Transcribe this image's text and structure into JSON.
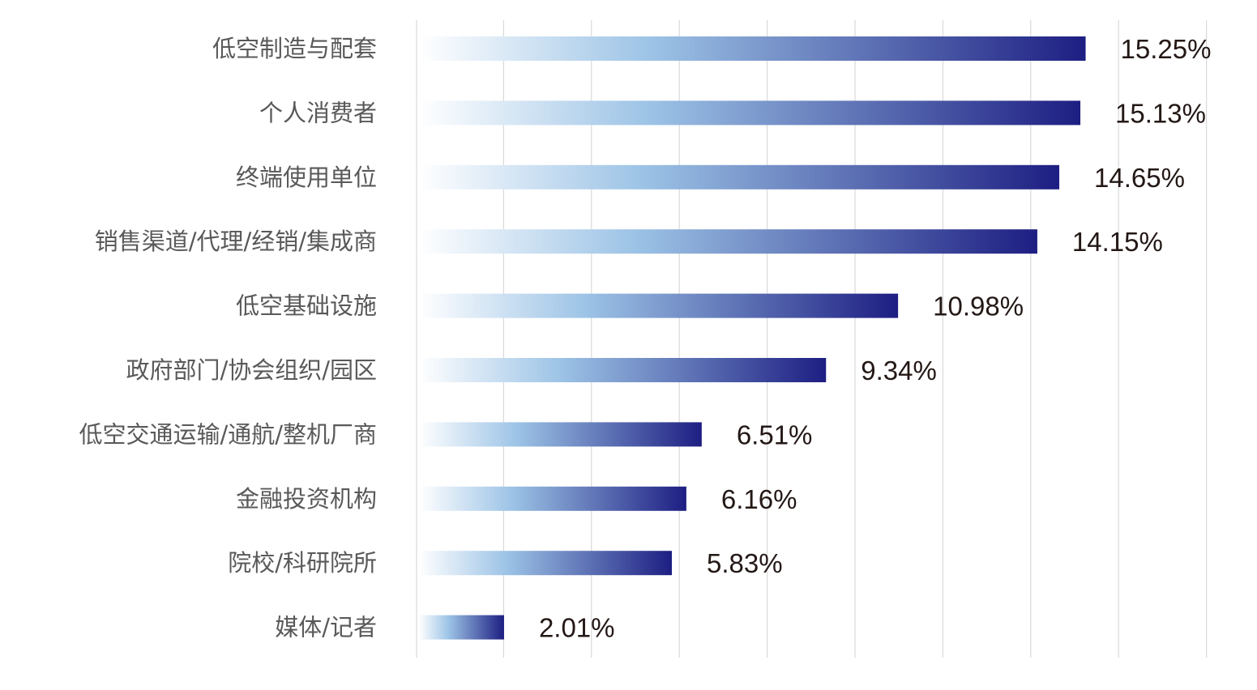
{
  "chart_data": {
    "type": "bar",
    "orientation": "horizontal",
    "categories": [
      "低空制造与配套",
      "个人消费者",
      "终端使用单位",
      "销售渠道/代理/经销/集成商",
      "低空基础设施",
      "政府部门/协会组织/园区",
      "低空交通运输/通航/整机厂商",
      "金融投资机构",
      "院校/科研院所",
      "媒体/记者"
    ],
    "values": [
      15.25,
      15.13,
      14.65,
      14.15,
      10.98,
      9.34,
      6.51,
      6.16,
      5.83,
      2.01
    ],
    "value_labels": [
      "15.25%",
      "15.13%",
      "14.65%",
      "14.15%",
      "10.98%",
      "9.34%",
      "6.51%",
      "6.16%",
      "5.83%",
      "2.01%"
    ],
    "xlim": [
      0,
      18
    ],
    "grid_step": 2,
    "grid": true,
    "xlabel": "",
    "ylabel": "",
    "colors": {
      "gradient_start": "#ffffff",
      "gradient_mid": "#9cc3e6",
      "gradient_end": "#1d1e82",
      "grid": "#d9d9d9"
    }
  }
}
